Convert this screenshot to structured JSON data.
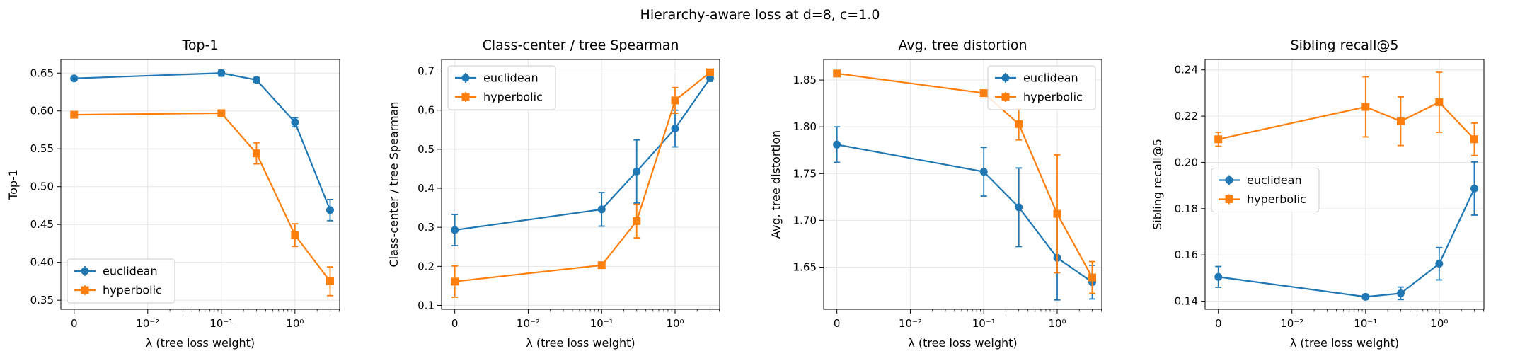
{
  "figure": {
    "suptitle": "Hierarchy-aware loss at d=8, c=1.0",
    "colors": {
      "euclidean": "#1f77b4",
      "hyperbolic": "#ff7f0e"
    }
  },
  "chart_data": [
    {
      "type": "line",
      "title": "Top-1",
      "xlabel": "λ (tree loss weight)",
      "ylabel": "Top-1",
      "xscale": "symlog (0, then log; linthresh 0.01)",
      "x": [
        0,
        0.1,
        0.3,
        1.0,
        3.0
      ],
      "x_ticks": [
        "0",
        "10⁻²",
        "10⁻¹",
        "10⁰"
      ],
      "ylim": [
        0.338,
        0.668
      ],
      "y_ticks": [
        0.35,
        0.4,
        0.45,
        0.5,
        0.55,
        0.6,
        0.65
      ],
      "grid": true,
      "legend": "lower-left",
      "series": [
        {
          "name": "euclidean",
          "marker": "circle",
          "values": [
            0.643,
            0.65,
            0.641,
            0.585,
            0.469
          ],
          "err": [
            0.002,
            0.004,
            0.003,
            0.006,
            0.014
          ]
        },
        {
          "name": "hyperbolic",
          "marker": "square",
          "values": [
            0.595,
            0.597,
            0.544,
            0.436,
            0.375
          ],
          "err": [
            0.001,
            0.002,
            0.014,
            0.015,
            0.019
          ]
        }
      ]
    },
    {
      "type": "line",
      "title": "Class-center / tree Spearman",
      "xlabel": "λ (tree loss weight)",
      "ylabel": "Class-center / tree Spearman",
      "xscale": "symlog (0, then log; linthresh 0.01)",
      "x": [
        0,
        0.1,
        0.3,
        1.0,
        3.0
      ],
      "x_ticks": [
        "0",
        "10⁻²",
        "10⁻¹",
        "10⁰"
      ],
      "ylim": [
        0.09,
        0.73
      ],
      "y_ticks": [
        0.1,
        0.2,
        0.3,
        0.4,
        0.5,
        0.6,
        0.7
      ],
      "grid": true,
      "legend": "upper-left",
      "series": [
        {
          "name": "euclidean",
          "marker": "circle",
          "values": [
            0.293,
            0.346,
            0.443,
            0.553,
            0.682
          ],
          "err": [
            0.04,
            0.043,
            0.081,
            0.047,
            0.008
          ]
        },
        {
          "name": "hyperbolic",
          "marker": "square",
          "values": [
            0.161,
            0.203,
            0.316,
            0.625,
            0.697
          ],
          "err": [
            0.04,
            0.004,
            0.043,
            0.033,
            0.006
          ]
        }
      ]
    },
    {
      "type": "line",
      "title": "Avg. tree distortion",
      "xlabel": "λ (tree loss weight)",
      "ylabel": "Avg. tree distortion",
      "xscale": "symlog (0, then log; linthresh 0.01)",
      "x": [
        0,
        0.1,
        0.3,
        1.0,
        3.0
      ],
      "x_ticks": [
        "0",
        "10⁻²",
        "10⁻¹",
        "10⁰"
      ],
      "ylim": [
        1.605,
        1.872
      ],
      "y_ticks": [
        1.65,
        1.7,
        1.75,
        1.8,
        1.85
      ],
      "grid": true,
      "legend": "upper-right",
      "series": [
        {
          "name": "euclidean",
          "marker": "circle",
          "values": [
            1.781,
            1.752,
            1.714,
            1.66,
            1.634
          ],
          "err": [
            0.019,
            0.026,
            0.042,
            0.045,
            0.018
          ]
        },
        {
          "name": "hyperbolic",
          "marker": "square",
          "values": [
            1.857,
            1.836,
            1.803,
            1.707,
            1.639
          ],
          "err": [
            0.001,
            0.001,
            0.017,
            0.063,
            0.017
          ]
        }
      ]
    },
    {
      "type": "line",
      "title": "Sibling recall@5",
      "xlabel": "λ (tree loss weight)",
      "ylabel": "Sibling recall@5",
      "xscale": "symlog (0, then log; linthresh 0.01)",
      "x": [
        0,
        0.1,
        0.3,
        1.0,
        3.0
      ],
      "x_ticks": [
        "0",
        "10⁻²",
        "10⁻¹",
        "10⁰"
      ],
      "ylim": [
        0.1365,
        0.2445
      ],
      "y_ticks": [
        0.14,
        0.16,
        0.18,
        0.2,
        0.22,
        0.24
      ],
      "grid": true,
      "legend": "center-left",
      "series": [
        {
          "name": "euclidean",
          "marker": "circle",
          "values": [
            0.1505,
            0.1419,
            0.1434,
            0.1562,
            0.1887
          ],
          "err": [
            0.0045,
            0.001,
            0.0027,
            0.007,
            0.0115
          ]
        },
        {
          "name": "hyperbolic",
          "marker": "square",
          "values": [
            0.21,
            0.224,
            0.2178,
            0.226,
            0.21
          ],
          "err": [
            0.003,
            0.013,
            0.0105,
            0.013,
            0.007
          ]
        }
      ]
    }
  ]
}
